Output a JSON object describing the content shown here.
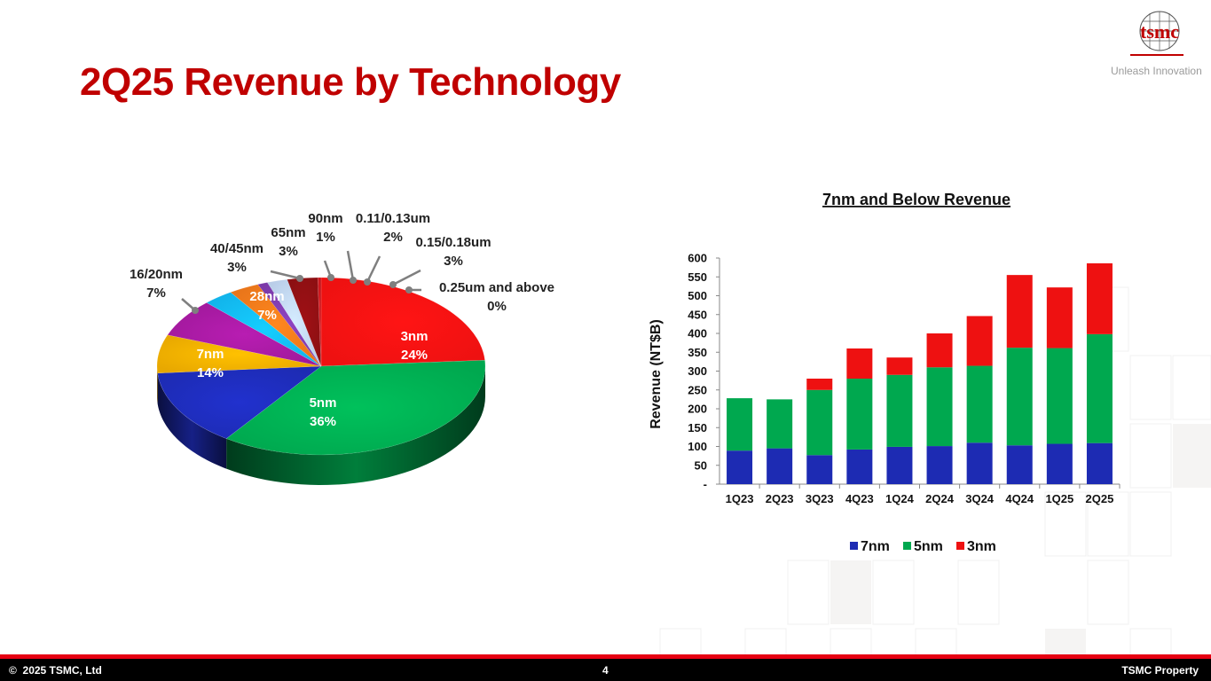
{
  "page": {
    "title": "2Q25 Revenue by Technology",
    "logo_text": "tsmc",
    "tagline": "Unleash Innovation",
    "copyright_symbol": "©",
    "copyright": "2025 TSMC, Ltd",
    "page_number": "4",
    "property": "TSMC Property"
  },
  "chart_data": [
    {
      "type": "pie",
      "title": "",
      "slices": [
        {
          "name": "3nm",
          "value": 24,
          "label": "24%",
          "color": "#ee1111"
        },
        {
          "name": "5nm",
          "value": 36,
          "label": "36%",
          "color": "#00a84f"
        },
        {
          "name": "7nm",
          "value": 14,
          "label": "14%",
          "color": "#1d2bb3"
        },
        {
          "name": "16/20nm",
          "value": 7,
          "label": "7%",
          "color": "#e8a800"
        },
        {
          "name": "28nm",
          "value": 7,
          "label": "7%",
          "color": "#a0199b"
        },
        {
          "name": "40/45nm",
          "value": 3,
          "label": "3%",
          "color": "#12b3ea"
        },
        {
          "name": "65nm",
          "value": 3,
          "label": "3%",
          "color": "#e8751a"
        },
        {
          "name": "90nm",
          "value": 1,
          "label": "1%",
          "color": "#7b3aa8"
        },
        {
          "name": "0.11/0.13um",
          "value": 2,
          "label": "2%",
          "color": "#b9cde8"
        },
        {
          "name": "0.15/0.18um",
          "value": 3,
          "label": "3%",
          "color": "#8b0f12"
        },
        {
          "name": "0.25um and above",
          "value": 0,
          "label": "0%",
          "color": "#c4161c"
        }
      ]
    },
    {
      "type": "bar",
      "stacked": true,
      "title": "7nm and Below Revenue",
      "ylabel": "Revenue (NT$B)",
      "ylim": [
        0,
        600
      ],
      "yticks": [
        "-",
        "50",
        "100",
        "150",
        "200",
        "250",
        "300",
        "350",
        "400",
        "450",
        "500",
        "550",
        "600"
      ],
      "categories": [
        "1Q23",
        "2Q23",
        "3Q23",
        "4Q23",
        "1Q24",
        "2Q24",
        "3Q24",
        "4Q24",
        "1Q25",
        "2Q25"
      ],
      "series": [
        {
          "name": "7nm",
          "color": "#1d2bb3",
          "values": [
            89,
            95,
            77,
            92,
            99,
            101,
            110,
            103,
            107,
            109
          ]
        },
        {
          "name": "5nm",
          "color": "#00a84f",
          "values": [
            139,
            130,
            173,
            188,
            191,
            209,
            204,
            259,
            254,
            289
          ]
        },
        {
          "name": "3nm",
          "color": "#ee1111",
          "values": [
            0,
            0,
            30,
            80,
            46,
            90,
            132,
            193,
            161,
            188
          ]
        }
      ],
      "legend": "bottom"
    }
  ]
}
